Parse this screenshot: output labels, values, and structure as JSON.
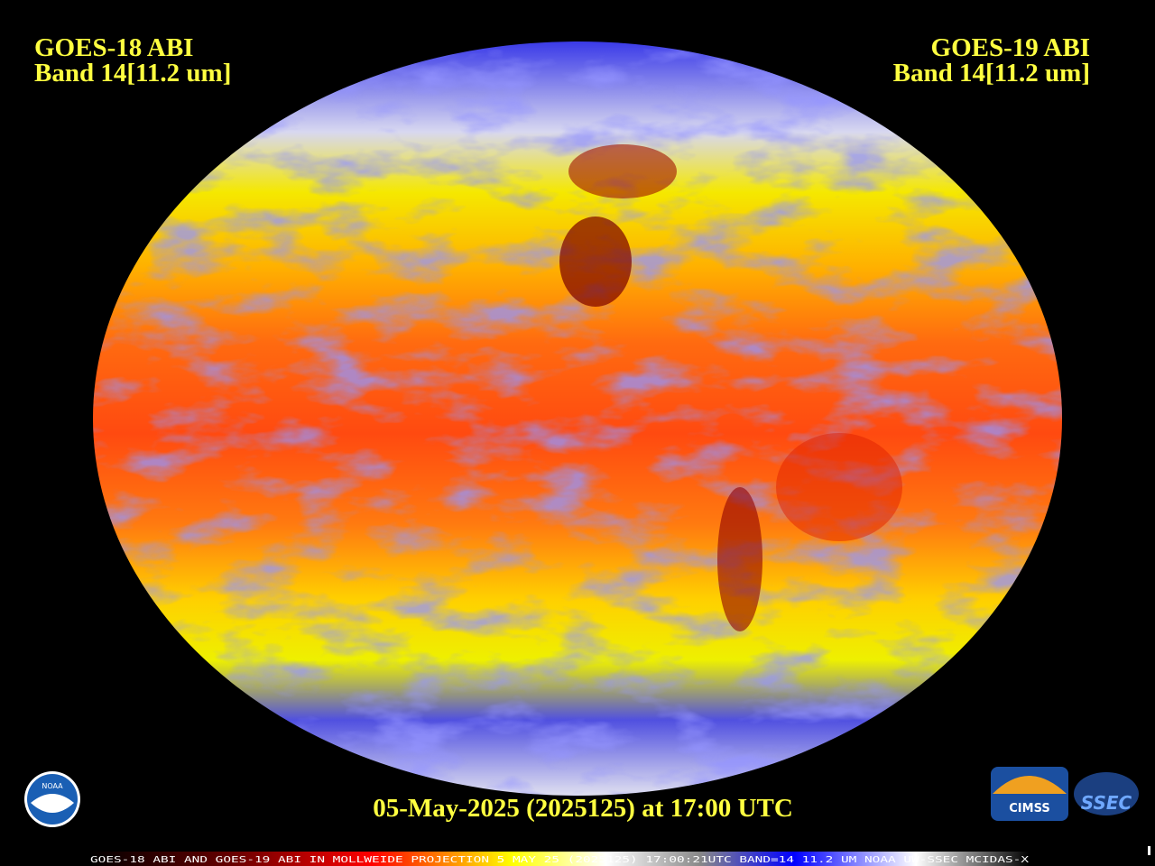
{
  "header": {
    "left": {
      "satellite": "GOES-18 ABI",
      "band": "Band 14[11.2 um]"
    },
    "right": {
      "satellite": "GOES-19 ABI",
      "band": "Band 14[11.2 um]"
    }
  },
  "timestamp": "05-May-2025 (2025125) at 17:00 UTC",
  "footer": "GOES-18 ABI AND GOES-19 ABI IN MOLLWEIDE PROJECTION 5 MAY 25 (2025125) 17:00:21UTC BAND=14 11.2 UM NOAA UW-SSEC MCIDAS-X",
  "logos": {
    "noaa": "NOAA",
    "cimss": "CIMSS",
    "ssec": "SSEC"
  }
}
